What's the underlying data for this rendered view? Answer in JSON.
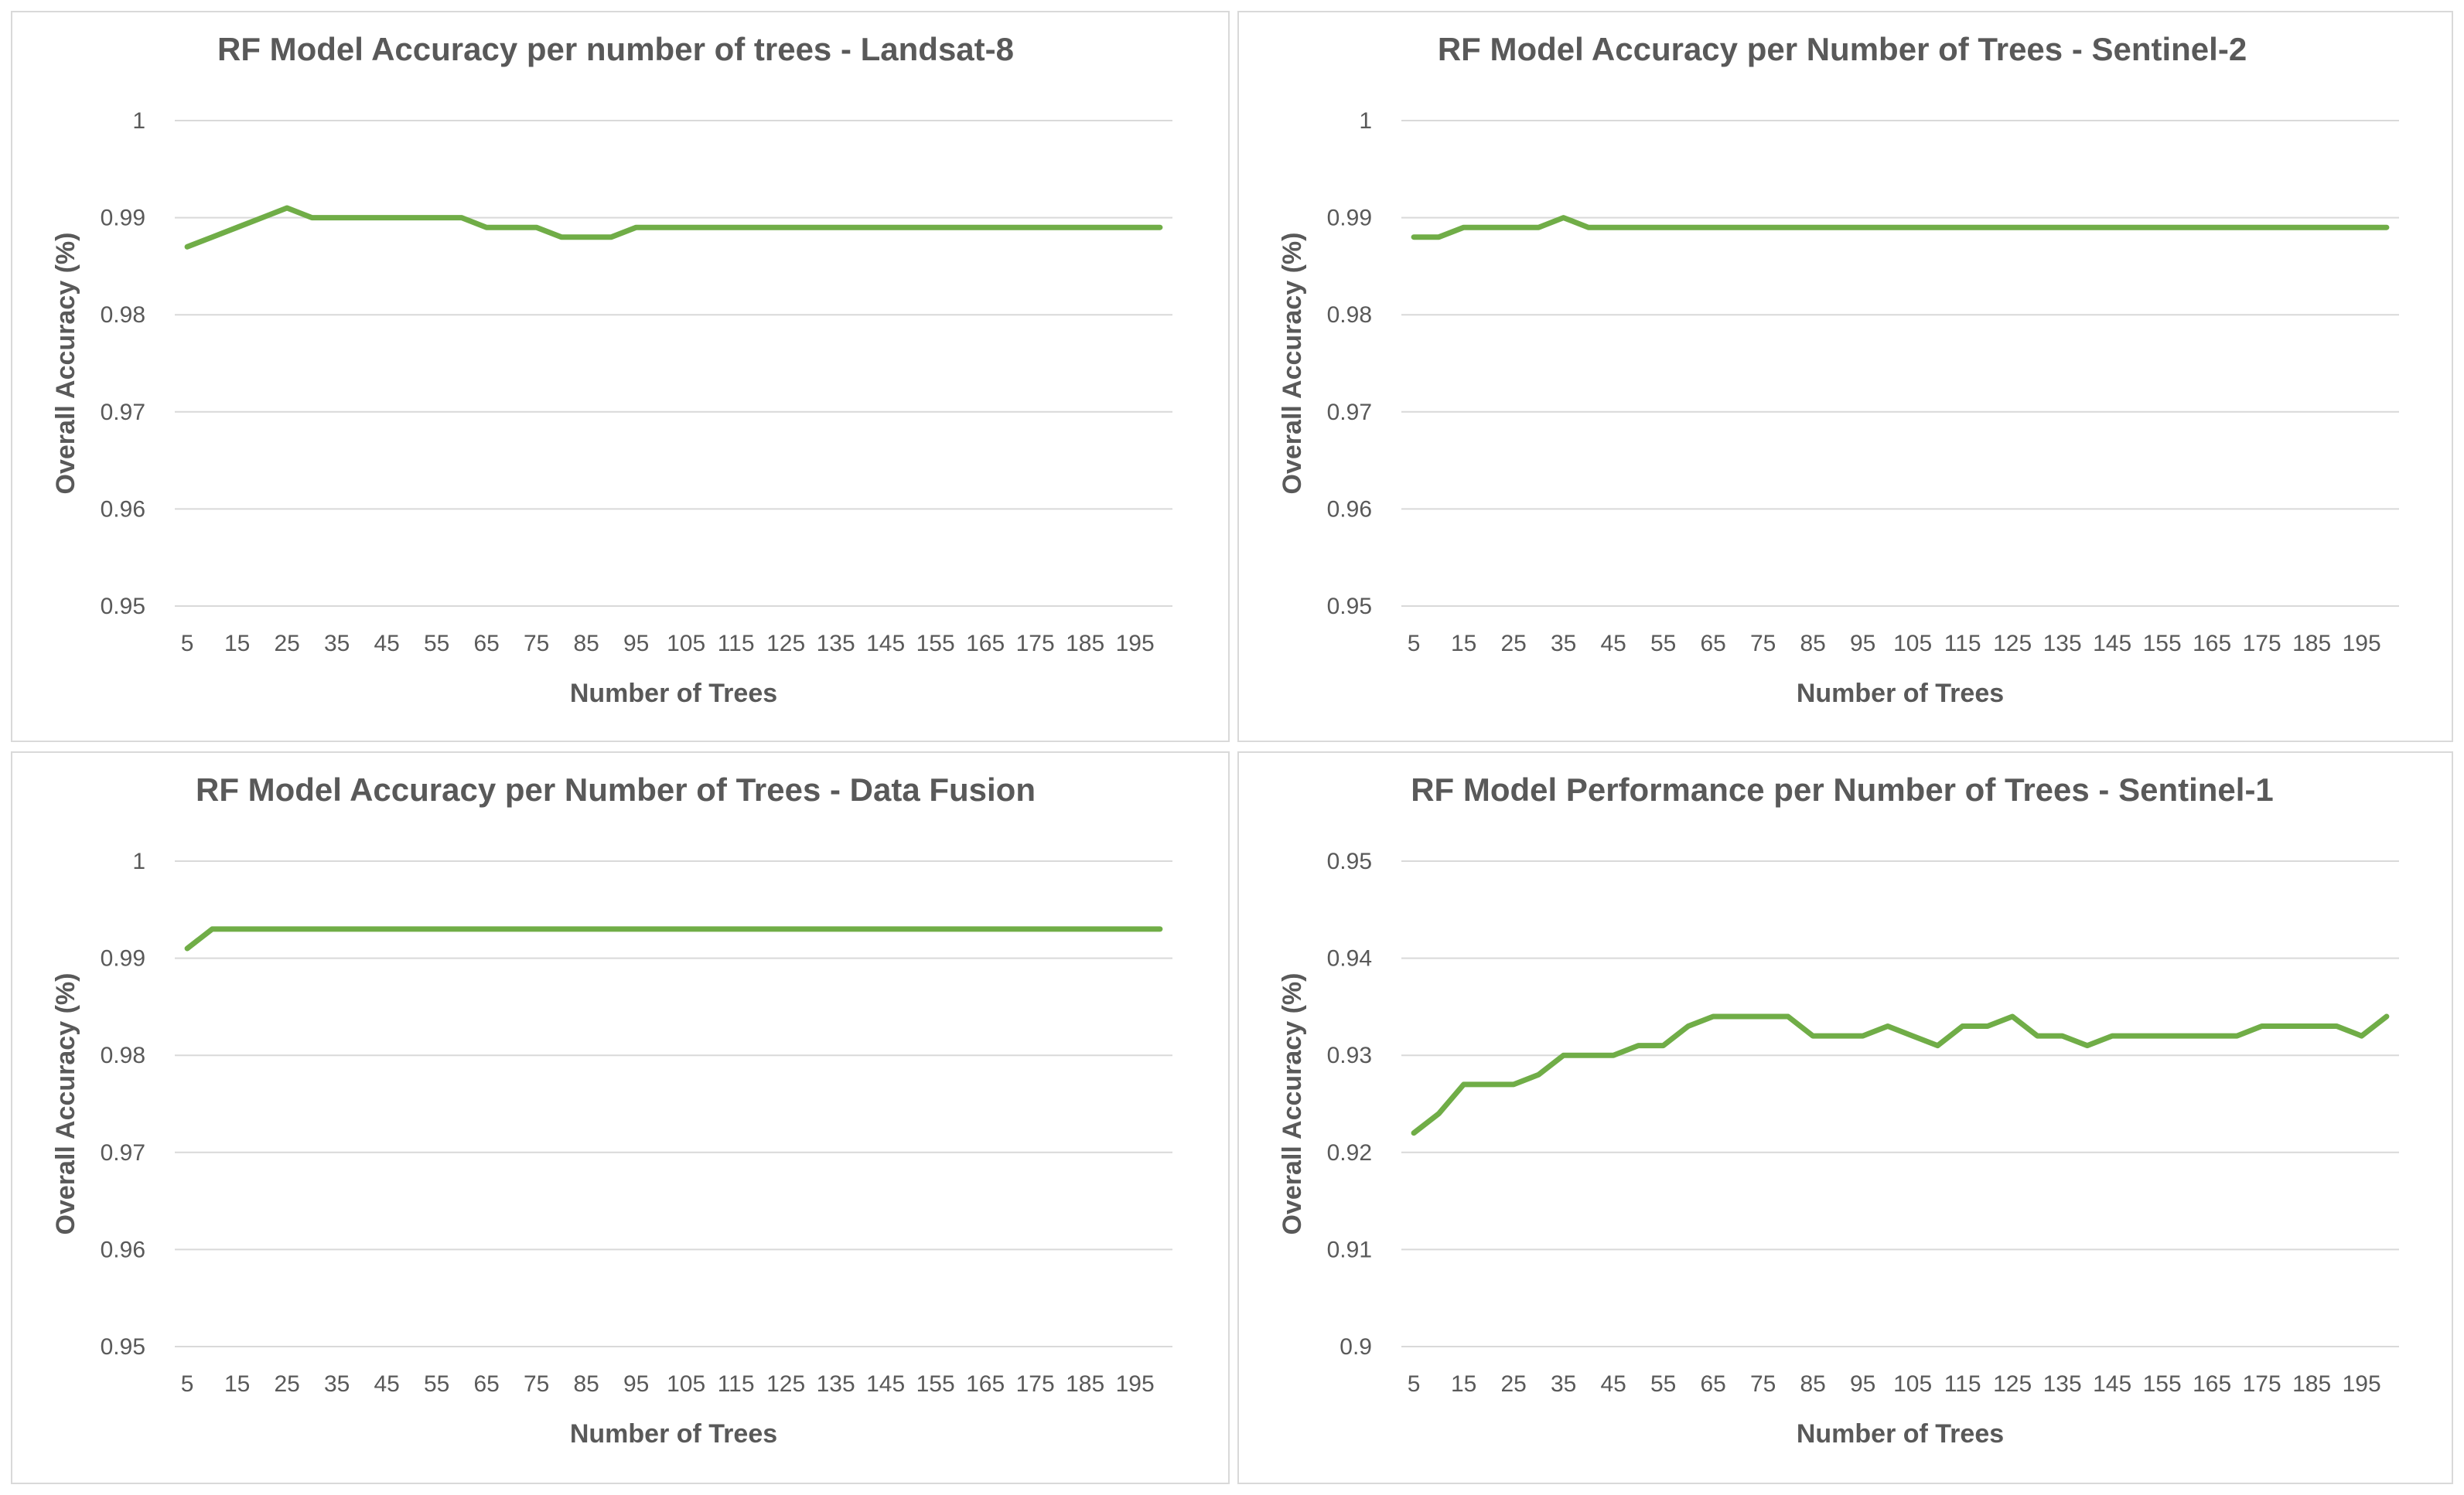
{
  "colors": {
    "series": "#70ad47",
    "grid": "#d9d9d9",
    "text": "#595959"
  },
  "chart_data": [
    {
      "type": "line",
      "title": "RF Model Accuracy per number of trees - Landsat-8",
      "xlabel": "Number of Trees",
      "ylabel": "Overall Accuracy (%)",
      "x": [
        5,
        10,
        15,
        20,
        25,
        30,
        35,
        40,
        45,
        50,
        55,
        60,
        65,
        70,
        75,
        80,
        85,
        90,
        95,
        100,
        105,
        110,
        115,
        120,
        125,
        130,
        135,
        140,
        145,
        150,
        155,
        160,
        165,
        170,
        175,
        180,
        185,
        190,
        195,
        200
      ],
      "x_tick_labels": [
        "5",
        "15",
        "25",
        "35",
        "45",
        "55",
        "65",
        "75",
        "85",
        "95",
        "105",
        "115",
        "125",
        "135",
        "145",
        "155",
        "165",
        "175",
        "185",
        "195"
      ],
      "y_tick_labels": [
        "1",
        "0.99",
        "0.98",
        "0.97",
        "0.96",
        "0.95"
      ],
      "y_ticks": [
        1,
        0.99,
        0.98,
        0.97,
        0.96,
        0.95
      ],
      "ylim": [
        0.95,
        1
      ],
      "values": [
        0.987,
        0.988,
        0.989,
        0.99,
        0.991,
        0.99,
        0.99,
        0.99,
        0.99,
        0.99,
        0.99,
        0.99,
        0.989,
        0.989,
        0.989,
        0.988,
        0.988,
        0.988,
        0.989,
        0.989,
        0.989,
        0.989,
        0.989,
        0.989,
        0.989,
        0.989,
        0.989,
        0.989,
        0.989,
        0.989,
        0.989,
        0.989,
        0.989,
        0.989,
        0.989,
        0.989,
        0.989,
        0.989,
        0.989,
        0.989
      ]
    },
    {
      "type": "line",
      "title": "RF Model Accuracy per Number of Trees - Sentinel-2",
      "xlabel": "Number of Trees",
      "ylabel": "Overall Accuracy (%)",
      "x": [
        5,
        10,
        15,
        20,
        25,
        30,
        35,
        40,
        45,
        50,
        55,
        60,
        65,
        70,
        75,
        80,
        85,
        90,
        95,
        100,
        105,
        110,
        115,
        120,
        125,
        130,
        135,
        140,
        145,
        150,
        155,
        160,
        165,
        170,
        175,
        180,
        185,
        190,
        195,
        200
      ],
      "x_tick_labels": [
        "5",
        "15",
        "25",
        "35",
        "45",
        "55",
        "65",
        "75",
        "85",
        "95",
        "105",
        "115",
        "125",
        "135",
        "145",
        "155",
        "165",
        "175",
        "185",
        "195"
      ],
      "y_tick_labels": [
        "1",
        "0.99",
        "0.98",
        "0.97",
        "0.96",
        "0.95"
      ],
      "y_ticks": [
        1,
        0.99,
        0.98,
        0.97,
        0.96,
        0.95
      ],
      "ylim": [
        0.95,
        1
      ],
      "values": [
        0.988,
        0.988,
        0.989,
        0.989,
        0.989,
        0.989,
        0.99,
        0.989,
        0.989,
        0.989,
        0.989,
        0.989,
        0.989,
        0.989,
        0.989,
        0.989,
        0.989,
        0.989,
        0.989,
        0.989,
        0.989,
        0.989,
        0.989,
        0.989,
        0.989,
        0.989,
        0.989,
        0.989,
        0.989,
        0.989,
        0.989,
        0.989,
        0.989,
        0.989,
        0.989,
        0.989,
        0.989,
        0.989,
        0.989,
        0.989
      ]
    },
    {
      "type": "line",
      "title": "RF Model Accuracy per Number of Trees - Data Fusion",
      "xlabel": "Number of Trees",
      "ylabel": "Overall Accuracy (%)",
      "x": [
        5,
        10,
        15,
        20,
        25,
        30,
        35,
        40,
        45,
        50,
        55,
        60,
        65,
        70,
        75,
        80,
        85,
        90,
        95,
        100,
        105,
        110,
        115,
        120,
        125,
        130,
        135,
        140,
        145,
        150,
        155,
        160,
        165,
        170,
        175,
        180,
        185,
        190,
        195,
        200
      ],
      "x_tick_labels": [
        "5",
        "15",
        "25",
        "35",
        "45",
        "55",
        "65",
        "75",
        "85",
        "95",
        "105",
        "115",
        "125",
        "135",
        "145",
        "155",
        "165",
        "175",
        "185",
        "195"
      ],
      "y_tick_labels": [
        "1",
        "0.99",
        "0.98",
        "0.97",
        "0.96",
        "0.95"
      ],
      "y_ticks": [
        1,
        0.99,
        0.98,
        0.97,
        0.96,
        0.95
      ],
      "ylim": [
        0.95,
        1
      ],
      "values": [
        0.991,
        0.993,
        0.993,
        0.993,
        0.993,
        0.993,
        0.993,
        0.993,
        0.993,
        0.993,
        0.993,
        0.993,
        0.993,
        0.993,
        0.993,
        0.993,
        0.993,
        0.993,
        0.993,
        0.993,
        0.993,
        0.993,
        0.993,
        0.993,
        0.993,
        0.993,
        0.993,
        0.993,
        0.993,
        0.993,
        0.993,
        0.993,
        0.993,
        0.993,
        0.993,
        0.993,
        0.993,
        0.993,
        0.993,
        0.993
      ]
    },
    {
      "type": "line",
      "title": "RF Model Performance per Number of Trees - Sentinel-1",
      "xlabel": "Number of Trees",
      "ylabel": "Overall Accuracy (%)",
      "x": [
        5,
        10,
        15,
        20,
        25,
        30,
        35,
        40,
        45,
        50,
        55,
        60,
        65,
        70,
        75,
        80,
        85,
        90,
        95,
        100,
        105,
        110,
        115,
        120,
        125,
        130,
        135,
        140,
        145,
        150,
        155,
        160,
        165,
        170,
        175,
        180,
        185,
        190,
        195,
        200
      ],
      "x_tick_labels": [
        "5",
        "15",
        "25",
        "35",
        "45",
        "55",
        "65",
        "75",
        "85",
        "95",
        "105",
        "115",
        "125",
        "135",
        "145",
        "155",
        "165",
        "175",
        "185",
        "195"
      ],
      "y_tick_labels": [
        "0.95",
        "0.94",
        "0.93",
        "0.92",
        "0.91",
        "0.9"
      ],
      "y_ticks": [
        0.95,
        0.94,
        0.93,
        0.92,
        0.91,
        0.9
      ],
      "ylim": [
        0.9,
        0.95
      ],
      "values": [
        0.922,
        0.924,
        0.927,
        0.927,
        0.927,
        0.928,
        0.93,
        0.93,
        0.93,
        0.931,
        0.931,
        0.933,
        0.934,
        0.934,
        0.934,
        0.934,
        0.932,
        0.932,
        0.932,
        0.933,
        0.932,
        0.931,
        0.933,
        0.933,
        0.934,
        0.932,
        0.932,
        0.931,
        0.932,
        0.932,
        0.932,
        0.932,
        0.932,
        0.932,
        0.933,
        0.933,
        0.933,
        0.933,
        0.932,
        0.934
      ]
    }
  ]
}
